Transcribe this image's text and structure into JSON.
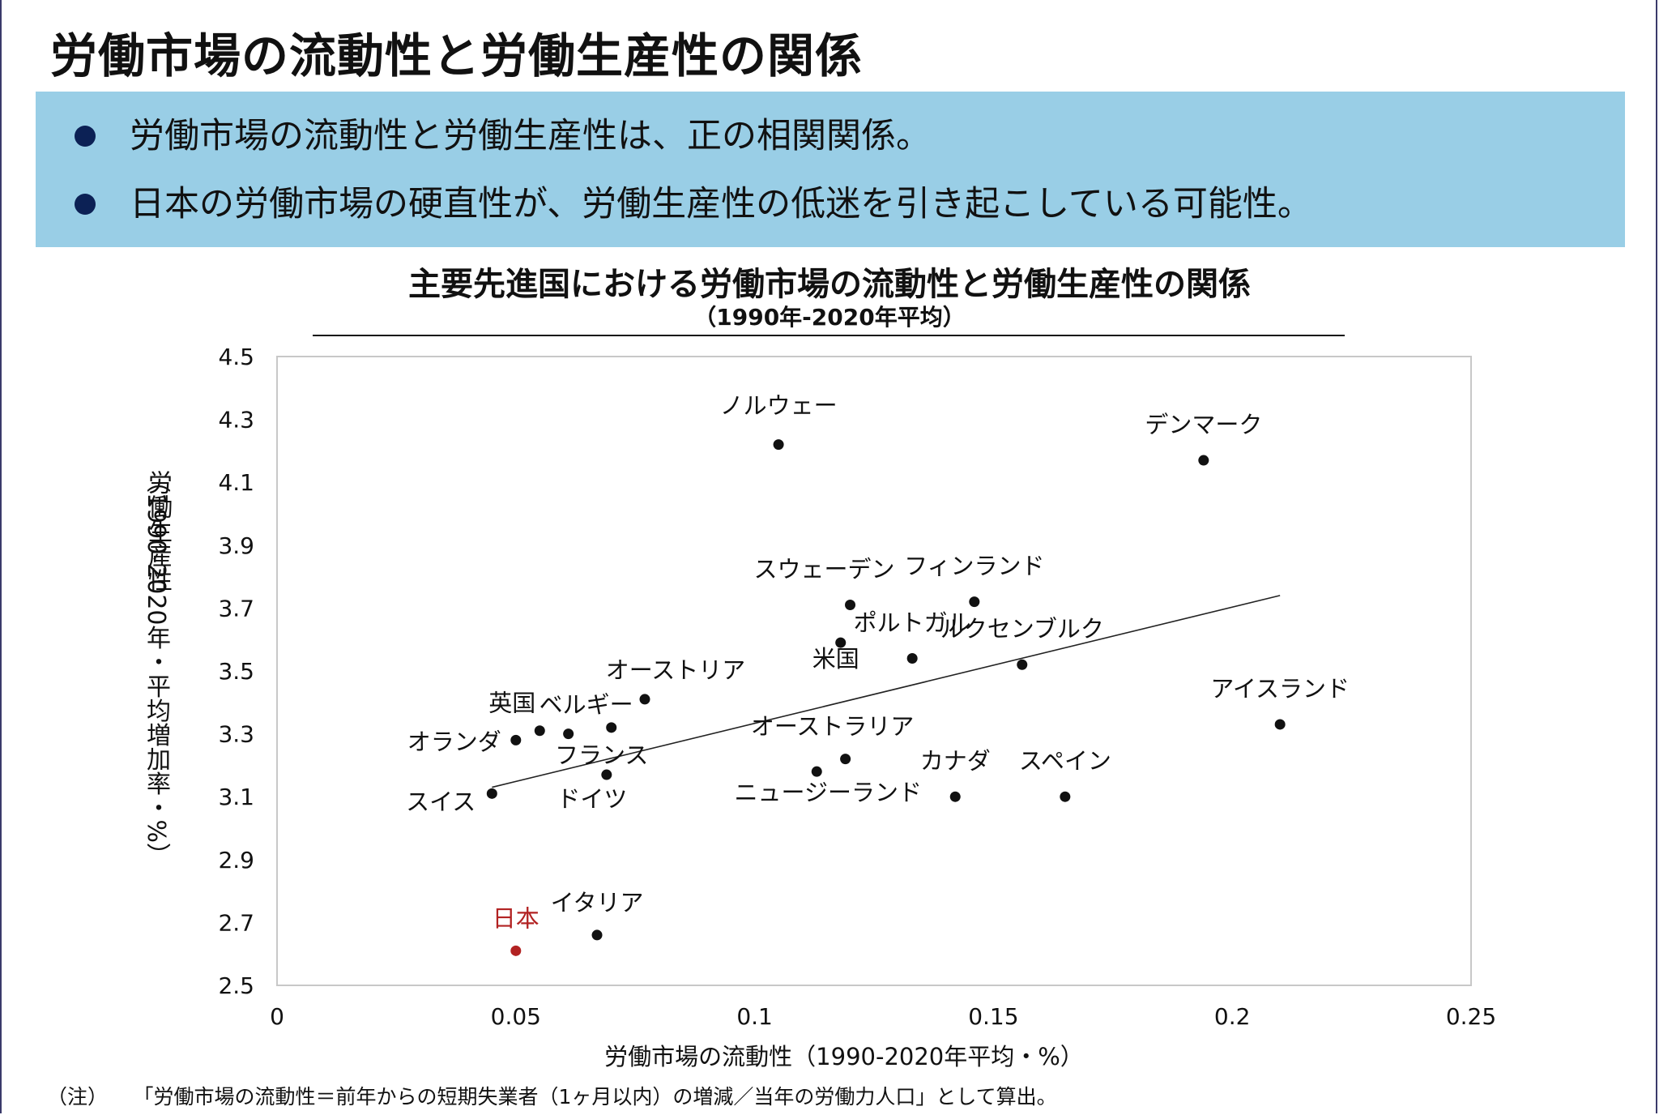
{
  "page": {
    "title": "労働市場の流動性と労働生産性の関係",
    "bullets": [
      "労働市場の流動性と労働生産性は、正の相関関係。",
      "日本の労働市場の硬直性が、労働生産性の低迷を引き起こしている可能性。"
    ],
    "footnote": {
      "label": "（注）",
      "text": "「労働市場の流動性＝前年からの短期失業者（1ヶ月以内）の増減／当年の労働力人口」として算出。"
    }
  },
  "colors": {
    "summary_bg": "#99cee6",
    "bullet": "#0c2155",
    "point": "#111111",
    "japan": "#b22222",
    "plot_border": "#c8c8c8"
  },
  "chart_data": {
    "type": "scatter",
    "title": "主要先進国における労働市場の流動性と労働生産性の関係",
    "subtitle": "（1990年-2020年平均）",
    "xlabel": "労働市場の流動性（1990-2020年平均・%）",
    "ylabel": "労働生産性",
    "ylabel_sub": "（1990-2020年・平均増加率・%）",
    "xlim": [
      0,
      0.25
    ],
    "ylim": [
      2.5,
      4.5
    ],
    "x_ticks": [
      0,
      0.05,
      0.1,
      0.15,
      0.2,
      0.25
    ],
    "x_tick_labels": [
      "0",
      "0.05",
      "0.1",
      "0.15",
      "0.2",
      "0.25"
    ],
    "y_ticks": [
      2.5,
      2.7,
      2.9,
      3.1,
      3.3,
      3.5,
      3.7,
      3.9,
      4.1,
      4.3,
      4.5
    ],
    "y_tick_labels": [
      "2.5",
      "2.7",
      "2.9",
      "3.1",
      "3.3",
      "3.5",
      "3.7",
      "3.9",
      "4.1",
      "4.3",
      "4.5"
    ],
    "grid": false,
    "points": [
      {
        "label": "ノルウェー",
        "x": 0.105,
        "y": 4.22
      },
      {
        "label": "デンマーク",
        "x": 0.194,
        "y": 4.17
      },
      {
        "label": "スウェーデン",
        "x": 0.12,
        "y": 3.71
      },
      {
        "label": "フィンランド",
        "x": 0.146,
        "y": 3.72
      },
      {
        "label": "ポルトガル",
        "x": 0.133,
        "y": 3.54
      },
      {
        "label": "米国",
        "x": 0.118,
        "y": 3.59
      },
      {
        "label": "ルクセンブルク",
        "x": 0.156,
        "y": 3.52
      },
      {
        "label": "オーストリア",
        "x": 0.077,
        "y": 3.41
      },
      {
        "label": "英国",
        "x": 0.055,
        "y": 3.31
      },
      {
        "label": "ベルギー",
        "x": 0.061,
        "y": 3.3
      },
      {
        "label": "オランダ",
        "x": 0.05,
        "y": 3.28
      },
      {
        "label": "フランス",
        "x": 0.07,
        "y": 3.32
      },
      {
        "label": "ドイツ",
        "x": 0.069,
        "y": 3.17
      },
      {
        "label": "スイス",
        "x": 0.045,
        "y": 3.11
      },
      {
        "label": "オーストラリア",
        "x": 0.119,
        "y": 3.22
      },
      {
        "label": "ニュージーランド",
        "x": 0.113,
        "y": 3.18
      },
      {
        "label": "カナダ",
        "x": 0.142,
        "y": 3.1
      },
      {
        "label": "スペイン",
        "x": 0.165,
        "y": 3.1
      },
      {
        "label": "アイスランド",
        "x": 0.21,
        "y": 3.33
      },
      {
        "label": "イタリア",
        "x": 0.067,
        "y": 2.66
      },
      {
        "label": "日本",
        "x": 0.05,
        "y": 2.61,
        "highlight": true
      }
    ],
    "trendline": {
      "x": [
        0.045,
        0.21
      ],
      "y": [
        3.13,
        3.74
      ]
    }
  }
}
